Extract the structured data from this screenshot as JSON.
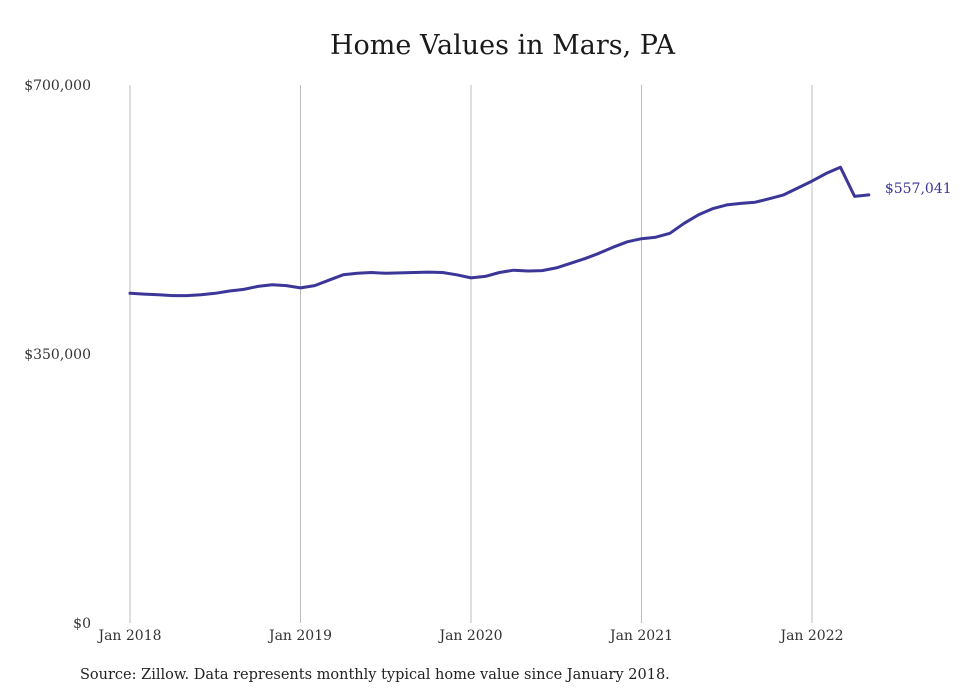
{
  "chart_data": {
    "type": "line",
    "title": "Home Values in Mars, PA",
    "xlabel": "",
    "ylabel": "",
    "ylim": [
      0,
      700000
    ],
    "y_ticks": [
      {
        "value": 0,
        "label": "$0"
      },
      {
        "value": 350000,
        "label": "$350,000"
      },
      {
        "value": 700000,
        "label": "$700,000"
      }
    ],
    "x_ticks": [
      {
        "value": "2018-01",
        "label": "Jan 2018"
      },
      {
        "value": "2019-01",
        "label": "Jan 2019"
      },
      {
        "value": "2020-01",
        "label": "Jan 2020"
      },
      {
        "value": "2021-01",
        "label": "Jan 2021"
      },
      {
        "value": "2022-01",
        "label": "Jan 2022"
      }
    ],
    "grid": "vertical",
    "x": [
      "2018-01",
      "2018-02",
      "2018-03",
      "2018-04",
      "2018-05",
      "2018-06",
      "2018-07",
      "2018-08",
      "2018-09",
      "2018-10",
      "2018-11",
      "2018-12",
      "2019-01",
      "2019-02",
      "2019-03",
      "2019-04",
      "2019-05",
      "2019-06",
      "2019-07",
      "2019-08",
      "2019-09",
      "2019-10",
      "2019-11",
      "2019-12",
      "2020-01",
      "2020-02",
      "2020-03",
      "2020-04",
      "2020-05",
      "2020-06",
      "2020-07",
      "2020-08",
      "2020-09",
      "2020-10",
      "2020-11",
      "2020-12",
      "2021-01",
      "2021-02",
      "2021-03",
      "2021-04",
      "2021-05",
      "2021-06",
      "2021-07",
      "2021-08",
      "2021-09",
      "2021-10",
      "2021-11",
      "2021-12",
      "2022-01",
      "2022-02",
      "2022-03",
      "2022-04",
      "2022-05"
    ],
    "series": [
      {
        "color": "#3b3698",
        "values": [
          429000,
          428000,
          427000,
          426000,
          426000,
          427000,
          429000,
          432000,
          434000,
          438000,
          440000,
          439000,
          436000,
          439000,
          446000,
          453000,
          455000,
          456000,
          455000,
          455500,
          456000,
          456500,
          456000,
          453000,
          449000,
          451000,
          456000,
          459000,
          458000,
          458500,
          462000,
          468000,
          474000,
          481000,
          489000,
          496000,
          500000,
          502000,
          507000,
          520000,
          531000,
          539000,
          544000,
          546000,
          547500,
          552000,
          557000,
          566000,
          575000,
          585000,
          593000,
          555000,
          557041
        ]
      }
    ],
    "end_label": "$557,041"
  },
  "footer": {
    "source": "Source: Zillow. Data represents monthly typical home value since January 2018."
  }
}
